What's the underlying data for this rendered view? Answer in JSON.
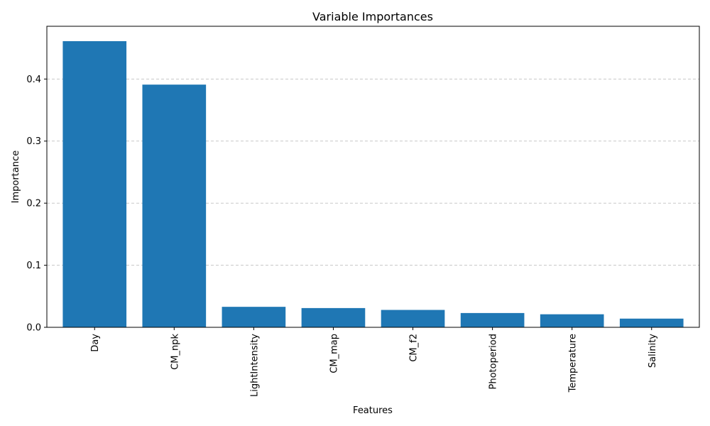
{
  "chart_data": {
    "type": "bar",
    "title": "Variable Importances",
    "xlabel": "Features",
    "ylabel": "Importance",
    "categories": [
      "Day",
      "CM_npk",
      "LightIntensity",
      "CM_map",
      "CM_f2",
      "Photoperiod",
      "Temperature",
      "Salinity"
    ],
    "values": [
      0.461,
      0.391,
      0.033,
      0.031,
      0.028,
      0.023,
      0.021,
      0.014
    ],
    "ylim": [
      0,
      0.485
    ],
    "yticks": [
      0.0,
      0.1,
      0.2,
      0.3,
      0.4
    ],
    "ytick_labels": [
      "0.0",
      "0.1",
      "0.2",
      "0.3",
      "0.4"
    ],
    "grid": "y-dashed",
    "bar_color": "#1f77b4",
    "grid_color": "#c0c0c0"
  }
}
